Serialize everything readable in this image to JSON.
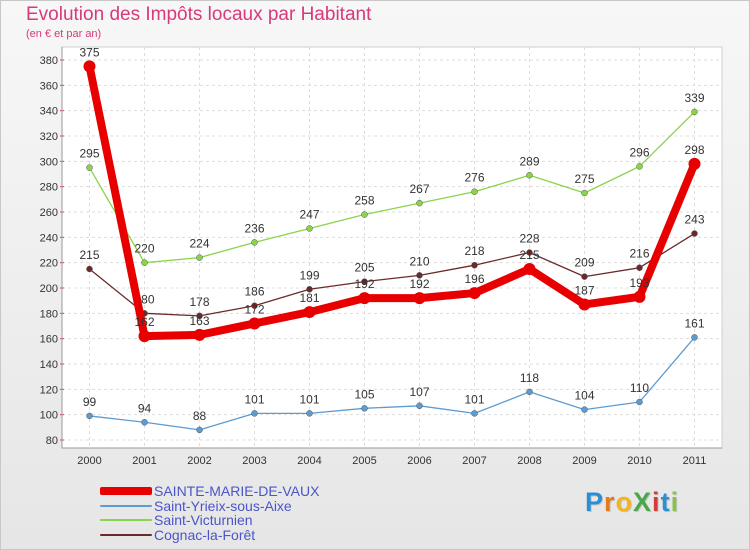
{
  "title": "Evolution des Impôts locaux par Habitant",
  "subtitle": "(en € et par an)",
  "logo": {
    "text": "Proxiti",
    "letters": [
      {
        "ch": "P",
        "color": "#2b8fd6"
      },
      {
        "ch": "r",
        "color": "#e8781e"
      },
      {
        "ch": "o",
        "color": "#f2b51f"
      },
      {
        "ch": "X",
        "color": "#4aa84a"
      },
      {
        "ch": "i",
        "color": "#d13b3b"
      },
      {
        "ch": "t",
        "color": "#2b8fd6"
      },
      {
        "ch": "i",
        "color": "#88c24a"
      }
    ]
  },
  "chart_data": {
    "type": "line",
    "title": "Evolution des Impôts locaux par Habitant",
    "subtitle": "(en € et par an)",
    "categories": [
      "2000",
      "2001",
      "2002",
      "2003",
      "2004",
      "2005",
      "2006",
      "2007",
      "2008",
      "2009",
      "2010",
      "2011"
    ],
    "ylim": [
      80,
      380
    ],
    "yticks": [
      80,
      100,
      120,
      140,
      160,
      180,
      200,
      220,
      240,
      260,
      280,
      300,
      320,
      340,
      360,
      380
    ],
    "grid": true,
    "legend_position": "bottom-left",
    "series": [
      {
        "name": "SAINTE-MARIE-DE-VAUX",
        "color": "#e80000",
        "values": [
          375,
          162,
          163,
          172,
          181,
          192,
          192,
          196,
          215,
          187,
          193,
          298
        ]
      },
      {
        "name": "Saint-Yrieix-sous-Aixe",
        "color": "#5d9bd0",
        "values": [
          99,
          94,
          88,
          101,
          101,
          105,
          107,
          101,
          118,
          104,
          110,
          161
        ]
      },
      {
        "name": "Saint-Victurnien",
        "color": "#8ad44a",
        "values": [
          295,
          220,
          224,
          236,
          247,
          258,
          267,
          276,
          289,
          275,
          296,
          339
        ]
      },
      {
        "name": "Cognac-la-Forêt",
        "color": "#6b2a2a",
        "values": [
          215,
          180,
          178,
          186,
          199,
          205,
          210,
          218,
          228,
          209,
          216,
          243
        ]
      }
    ]
  }
}
